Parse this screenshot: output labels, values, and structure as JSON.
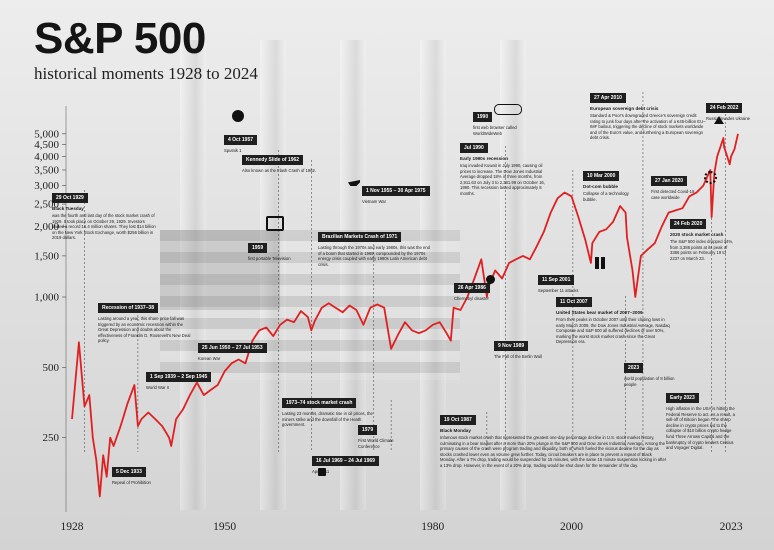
{
  "title": "S&P 500",
  "subtitle": "historical moments 1928 to 2024",
  "colors": {
    "line": "#e02020",
    "text": "#1a1a1a",
    "tag_bg": "#1f1f1f"
  },
  "chart_data": {
    "type": "line",
    "xlim": [
      1928,
      2024
    ],
    "y_scale": "log",
    "ylim": [
      120,
      6200
    ],
    "yticks": [
      250,
      500,
      1000,
      1500,
      2000,
      2500,
      3000,
      3500,
      4000,
      4500,
      5000
    ],
    "ytick_labels": [
      "250",
      "500",
      "1,000",
      "1,500",
      "2,000",
      "2,500",
      "3,000",
      "3,500",
      "4,000",
      "4,500",
      "5,000"
    ],
    "xticks": [
      1928,
      1950,
      1980,
      2000,
      2023
    ],
    "xtick_labels": [
      "1928",
      "1950",
      "1980",
      "2000",
      "2023"
    ],
    "series": [
      {
        "x": [
          1928,
          1929,
          1929.8,
          1930.5,
          1931,
          1931.5,
          1932,
          1932.5,
          1933,
          1933.5,
          1934,
          1935,
          1936,
          1937,
          1937.5,
          1938,
          1939,
          1940,
          1941,
          1942,
          1942.3,
          1943,
          1944,
          1945,
          1946,
          1947,
          1948,
          1949,
          1950,
          1951,
          1952,
          1953,
          1954,
          1955,
          1956,
          1957,
          1958,
          1959,
          1960,
          1961,
          1962,
          1962.5,
          1963,
          1964,
          1965,
          1966,
          1967,
          1968,
          1969,
          1970,
          1971,
          1972,
          1973,
          1974,
          1975,
          1976,
          1977,
          1978,
          1979,
          1980,
          1981,
          1982,
          1982.6,
          1983,
          1984,
          1985,
          1986,
          1987,
          1987.8,
          1988,
          1989,
          1990,
          1991,
          1992,
          1993,
          1994,
          1995,
          1996,
          1997,
          1998,
          1999,
          2000,
          2001,
          2002,
          2002.8,
          2003,
          2004,
          2005,
          2006,
          2007,
          2007.8,
          2008,
          2008.8,
          2009.2,
          2010,
          2011,
          2012,
          2013,
          2014,
          2015,
          2016,
          2017,
          2018,
          2019,
          2020,
          2020.2,
          2020.6,
          2021,
          2021.9,
          2022,
          2022.8,
          2023,
          2023.5,
          2024
        ],
        "values": [
          300,
          640,
          340,
          380,
          250,
          200,
          140,
          210,
          170,
          250,
          230,
          280,
          350,
          420,
          280,
          300,
          320,
          300,
          280,
          250,
          230,
          300,
          330,
          380,
          430,
          380,
          400,
          420,
          480,
          520,
          540,
          520,
          650,
          720,
          740,
          680,
          760,
          800,
          780,
          870,
          820,
          720,
          790,
          900,
          940,
          900,
          860,
          920,
          880,
          760,
          900,
          930,
          900,
          600,
          690,
          780,
          720,
          700,
          720,
          760,
          780,
          700,
          650,
          900,
          880,
          1000,
          1200,
          1450,
          1000,
          1100,
          1300,
          1200,
          1400,
          1450,
          1500,
          1450,
          1650,
          1900,
          2300,
          2650,
          2800,
          2700,
          2200,
          1750,
          1400,
          1700,
          1900,
          1950,
          2100,
          2450,
          2300,
          1800,
          1300,
          1000,
          1500,
          1600,
          1700,
          2000,
          2300,
          2350,
          2400,
          2700,
          2800,
          3000,
          3500,
          2200,
          3400,
          4000,
          4800,
          4400,
          3700,
          4000,
          4300,
          5000
        ]
      }
    ]
  },
  "events": [
    {
      "date": "29 Oct 1929",
      "heading": "Black Tuesday",
      "text": "was the fourth and last day of the stock market crash of 1929. It took place on October 29, 1929. Investors traded a record 16.4 million shares. They lost $14 billion on the New York Stock Exchange, worth $256 billion in 2019 dollars."
    },
    {
      "date": "Recession of 1937–38",
      "heading": "",
      "text": "Lasting around a year, this share price fall was triggered by an economic recession within the Great Depression and doubts about the effectiveness of Franklin D. Roosevelt's New Deal policy."
    },
    {
      "date": "1 Sep 1939 – 2 Sep 1945",
      "heading": "",
      "text": "World War II"
    },
    {
      "date": "5 Dec 1933",
      "heading": "",
      "text": "Repeal of Prohibition"
    },
    {
      "date": "4 Oct 1957",
      "heading": "",
      "text": "Sputnik 1"
    },
    {
      "date": "Kennedy Slide of 1962",
      "heading": "",
      "text": "Also known as the Flash Crash of 1962."
    },
    {
      "date": "1959",
      "heading": "",
      "text": "first portable Television"
    },
    {
      "date": "25 Jun 1950 – 27 Jul 1953",
      "heading": "",
      "text": "Korean War"
    },
    {
      "date": "1 Nov 1955 – 30 Apr 1975",
      "heading": "",
      "text": "Vietnam War"
    },
    {
      "date": "Brazilian Markets Crash of 1971",
      "heading": "",
      "text": "Lasting through the 1970s and early 1980s, this was the end of a boom that started in 1969, compounded by the 1970s energy crisis coupled with early 1980s Latin American debt crisis."
    },
    {
      "date": "1973–74 stock market crash",
      "heading": "",
      "text": "Lasting 23 months, dramatic rise in oil prices, the miners strike and the downfall of the Heath government."
    },
    {
      "date": "16 Jul 1969 – 24 Jul 1969",
      "heading": "",
      "text": "Apollo 11"
    },
    {
      "date": "1979",
      "heading": "",
      "text": "First World Climate Conference"
    },
    {
      "date": "1990",
      "heading": "",
      "text": "first web browser called WorldWideWeb"
    },
    {
      "date": "Jul 1990",
      "heading": "Early 1990s recession",
      "text": "Iraq invaded Kuwait in July 1990, causing oil prices to increase. The Dow Jones Industrial Average dropped 18% in three months, from 2,911.63 on July 3 to 2,381.99 on October 16, 1990. This recession lasted approximately 8 months."
    },
    {
      "date": "26 Apr 1986",
      "heading": "",
      "text": "Chernobyl disaster"
    },
    {
      "date": "9 Nov 1989",
      "heading": "",
      "text": "The Fall of the Berlin Wall"
    },
    {
      "date": "19 Oct 1987",
      "heading": "Black Monday",
      "text": "Infamous stock market crash that represented the greatest one-day percentage decline in U.S. stock market history, culminating in a bear market after a more than 20% plunge in the S&P 500 and Dow Jones Industrial Average. Among the primary causes of the crash were program trading and illiquidity, both of which fueled the vicious decline for the day as stocks crashed lower even as volume grew further. Today, circuit breakers are in place to prevent a repeat of Black Monday. After a 7% drop, trading would be suspended for 15 minutes, with the same 15 minute suspension kicking in after a 13% drop. However, in the event of a 20% drop, trading would be shut down for the remainder of the day."
    },
    {
      "date": "10 Mar 2000",
      "heading": "Dot-com bubble",
      "text": "Collapse of a technology bubble."
    },
    {
      "date": "11 Sep 2001",
      "heading": "",
      "text": "September 11 attacks"
    },
    {
      "date": "11 Oct 2007",
      "heading": "United States bear market of 2007–2009",
      "text": "From their peaks in October 2007 until their closing lows in early March 2009, the Dow Jones Industrial Average, Nasdaq Composite and S&P 500 all suffered declines of over 50%, marking the worst stock market crash since the Great Depression era."
    },
    {
      "date": "27 Apr 2010",
      "heading": "European sovereign debt crisis",
      "text": "Standard & Poor's downgraded Greece's sovereign credit rating to junk four days after the activation of a €45-billion EU–IMF bailout, triggering the decline of stock markets worldwide and of the Euro's value, and furthering a European sovereign debt crisis."
    },
    {
      "date": "27 Jan 2020",
      "heading": "",
      "text": "First detected Covid-19 case worldwide"
    },
    {
      "date": "24 Feb 2020",
      "heading": "2020 stock market crash",
      "text": "The S&P 500 index dropped 34%, from 3,386 points at its peak of 3386 points on February 19 to 2237 on March 23."
    },
    {
      "date": "24 Feb 2022",
      "heading": "",
      "text": "Russia invades Ukraine"
    },
    {
      "date": "2023",
      "heading": "",
      "text": "world population of 8 billion people"
    },
    {
      "date": "Early 2023",
      "heading": "",
      "text": "High inflation in the USA is hitting the Federal Reserve to act. As a result, a sell-off of Bitcoin began. The sharp decline in crypto prices led to the collapse of $10 billion crypto hedge fund Three Arrows Capital and the bankruptcy of crypto lenders Celsius and Voyager Digital."
    }
  ]
}
